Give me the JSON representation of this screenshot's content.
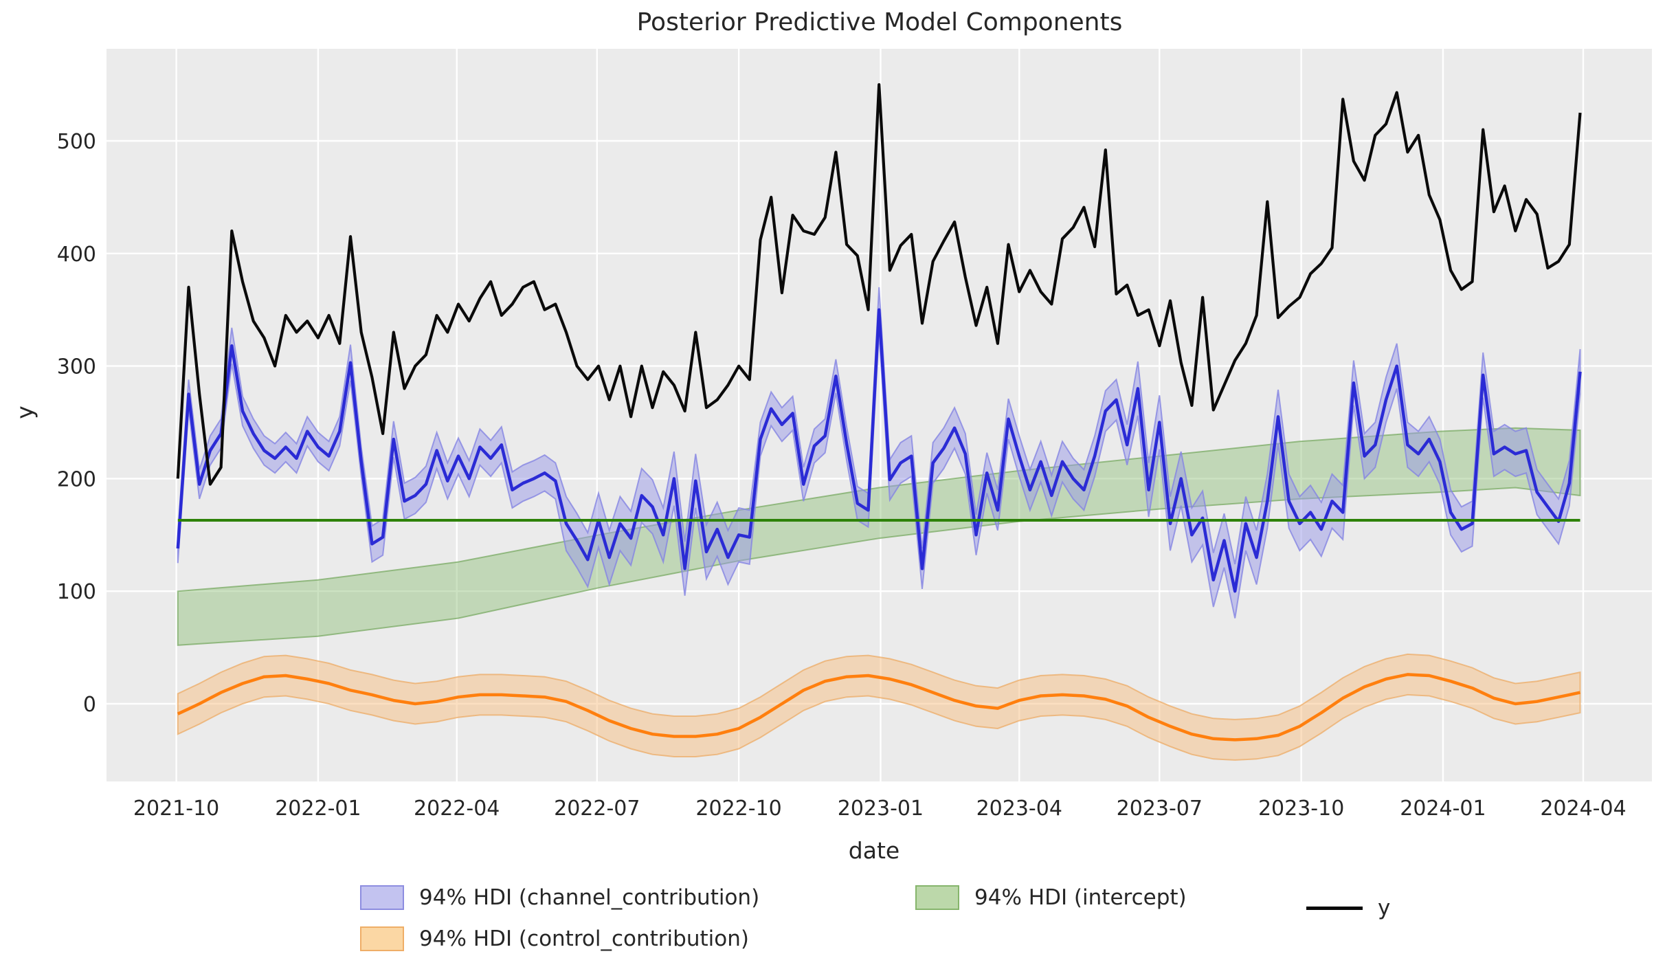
{
  "figure": {
    "title": "Posterior Predictive Model Components",
    "xlabel": "date",
    "ylabel": "y"
  },
  "chart_data": {
    "type": "line",
    "title": "Posterior Predictive Model Components",
    "xlabel": "date",
    "ylabel": "y",
    "background": "#ebebeb",
    "grid_color": "#ffffff",
    "grid_on": true,
    "x_start_date": "2021-10-02",
    "x_freq_days": 7,
    "n_points": 131,
    "y_ticks": [
      0,
      100,
      200,
      300,
      400,
      500
    ],
    "ylim": [
      -69,
      582
    ],
    "x_ticks": [
      {
        "label": "2021-10",
        "day": 0
      },
      {
        "label": "2022-01",
        "day": 92
      },
      {
        "label": "2022-04",
        "day": 182
      },
      {
        "label": "2022-07",
        "day": 273
      },
      {
        "label": "2022-10",
        "day": 365
      },
      {
        "label": "2023-01",
        "day": 457
      },
      {
        "label": "2023-04",
        "day": 547
      },
      {
        "label": "2023-07",
        "day": 638
      },
      {
        "label": "2023-10",
        "day": 730
      },
      {
        "label": "2024-01",
        "day": 822
      },
      {
        "label": "2024-04",
        "day": 913
      }
    ],
    "series": [
      {
        "name": "y",
        "type": "line",
        "color": "#0a0a0a",
        "values": [
          200,
          370,
          275,
          195,
          210,
          420,
          375,
          340,
          325,
          300,
          345,
          330,
          340,
          325,
          345,
          320,
          415,
          330,
          290,
          240,
          330,
          280,
          300,
          310,
          345,
          330,
          355,
          340,
          360,
          375,
          345,
          355,
          370,
          375,
          350,
          355,
          330,
          300,
          288,
          300,
          270,
          300,
          255,
          300,
          263,
          295,
          283,
          260,
          330,
          263,
          270,
          283,
          300,
          288,
          412,
          450,
          365,
          434,
          420,
          417,
          432,
          490,
          408,
          398,
          350,
          550,
          385,
          407,
          417,
          338,
          393,
          411,
          428,
          379,
          336,
          370,
          320,
          408,
          366,
          385,
          366,
          355,
          413,
          423,
          441,
          406,
          492,
          364,
          372,
          345,
          350,
          318,
          358,
          303,
          265,
          361,
          261,
          283,
          305,
          320,
          345,
          446,
          343,
          353,
          361,
          382,
          391,
          405,
          537,
          482,
          465,
          505,
          515,
          543,
          490,
          505,
          452,
          430,
          385,
          368,
          375,
          510,
          437,
          460,
          420,
          448,
          435,
          387,
          393,
          408,
          525
        ]
      },
      {
        "name": "channel_contribution",
        "legend_label": "94% HDI (channel_contribution)",
        "type": "line+band",
        "line_color": "#2b2bd5",
        "band_fill": "#9a9ae8",
        "band_edge": "#8585e2",
        "values": [
          138,
          275,
          195,
          225,
          240,
          318,
          260,
          240,
          225,
          218,
          228,
          218,
          242,
          228,
          220,
          242,
          303,
          215,
          142,
          148,
          235,
          180,
          185,
          195,
          225,
          198,
          220,
          200,
          228,
          218,
          230,
          190,
          196,
          200,
          205,
          198,
          160,
          145,
          128,
          163,
          130,
          160,
          147,
          185,
          175,
          150,
          200,
          120,
          198,
          135,
          155,
          130,
          150,
          148,
          235,
          262,
          248,
          258,
          195,
          229,
          238,
          291,
          231,
          178,
          172,
          350,
          199,
          214,
          220,
          120,
          214,
          227,
          245,
          222,
          150,
          205,
          172,
          253,
          220,
          190,
          215,
          185,
          215,
          200,
          190,
          220,
          260,
          270,
          230,
          280,
          190,
          250,
          160,
          200,
          150,
          165,
          110,
          145,
          100,
          160,
          130,
          180,
          255,
          180,
          160,
          170,
          155,
          180,
          170,
          285,
          220,
          230,
          270,
          300,
          230,
          222,
          235,
          215,
          170,
          155,
          160,
          292,
          222,
          228,
          222,
          225,
          188,
          175,
          162,
          196,
          295
        ],
        "hdi_halfwidth": [
          13,
          13,
          13,
          13,
          13,
          16,
          13,
          13,
          13,
          13,
          13,
          13,
          13,
          13,
          13,
          13,
          16,
          13,
          16,
          16,
          16,
          16,
          16,
          16,
          16,
          16,
          16,
          16,
          16,
          16,
          16,
          16,
          16,
          16,
          16,
          16,
          24,
          24,
          24,
          24,
          24,
          24,
          24,
          24,
          24,
          24,
          24,
          24,
          24,
          24,
          24,
          24,
          24,
          24,
          15,
          15,
          15,
          15,
          15,
          15,
          15,
          15,
          15,
          15,
          15,
          20,
          18,
          18,
          18,
          18,
          18,
          18,
          18,
          18,
          18,
          18,
          18,
          18,
          18,
          18,
          18,
          18,
          18,
          18,
          18,
          18,
          18,
          18,
          18,
          24,
          24,
          24,
          24,
          24,
          24,
          24,
          24,
          24,
          24,
          24,
          24,
          24,
          24,
          24,
          24,
          24,
          24,
          24,
          24,
          20,
          20,
          20,
          20,
          20,
          20,
          20,
          20,
          20,
          20,
          20,
          20,
          20,
          20,
          20,
          20,
          20,
          20,
          20,
          20,
          20,
          20
        ]
      },
      {
        "name": "intercept",
        "legend_label": "94% HDI (intercept)",
        "type": "band+hline",
        "band_fill": "#8fbf77",
        "band_edge": "#74a65c",
        "line_color": "#2e8209",
        "line_value": 163,
        "keypoint_weeks": [
          0,
          13,
          26,
          39,
          52,
          65,
          78,
          91,
          104,
          117,
          124,
          130
        ],
        "hdi_low": [
          52,
          60,
          76,
          103,
          127,
          147,
          162,
          173,
          182,
          188,
          192,
          185
        ],
        "hdi_high": [
          100,
          110,
          126,
          150,
          172,
          192,
          207,
          220,
          233,
          242,
          245,
          243
        ]
      },
      {
        "name": "control_contribution",
        "legend_label": "94% HDI (control_contribution)",
        "type": "line+band",
        "line_color": "#ff7f0e",
        "band_fill": "#f7c083",
        "band_edge": "#eda860",
        "hdi_halfwidth_const": 18,
        "keypoint_weeks": [
          0,
          2,
          4,
          6,
          8,
          10,
          12,
          14,
          16,
          18,
          20,
          22,
          24,
          26,
          28,
          30,
          32,
          34,
          36,
          38,
          40,
          42,
          44,
          46,
          48,
          50,
          52,
          54,
          56,
          58,
          60,
          62,
          64,
          66,
          68,
          70,
          72,
          74,
          76,
          78,
          80,
          82,
          84,
          86,
          88,
          90,
          92,
          94,
          96,
          98,
          100,
          102,
          104,
          106,
          108,
          110,
          112,
          114,
          116,
          118,
          120,
          122,
          124,
          126,
          128,
          130
        ],
        "keypoint_values": [
          -9,
          0,
          10,
          18,
          24,
          25,
          22,
          18,
          12,
          8,
          3,
          0,
          2,
          6,
          8,
          8,
          7,
          6,
          2,
          -6,
          -15,
          -22,
          -27,
          -29,
          -29,
          -27,
          -22,
          -12,
          0,
          12,
          20,
          24,
          25,
          22,
          17,
          10,
          3,
          -2,
          -4,
          3,
          7,
          8,
          7,
          4,
          -2,
          -12,
          -20,
          -27,
          -31,
          -32,
          -31,
          -28,
          -20,
          -8,
          5,
          15,
          22,
          26,
          25,
          20,
          14,
          5,
          0,
          2,
          6,
          10
        ]
      }
    ],
    "legend_entries": [
      {
        "swatch": "band",
        "fill": "#c3c3f0",
        "border": "#8d8de0",
        "label": "94% HDI (channel_contribution)"
      },
      {
        "swatch": "band",
        "fill": "#bcd8aa",
        "border": "#86b56c",
        "label": "94% HDI (intercept)"
      },
      {
        "swatch": "line",
        "fill": "#0a0a0a",
        "border": "#0a0a0a",
        "label": "y"
      },
      {
        "swatch": "band",
        "fill": "#fbd7a4",
        "border": "#efae67",
        "label": "94% HDI (control_contribution)"
      }
    ],
    "legend_position": "below"
  }
}
